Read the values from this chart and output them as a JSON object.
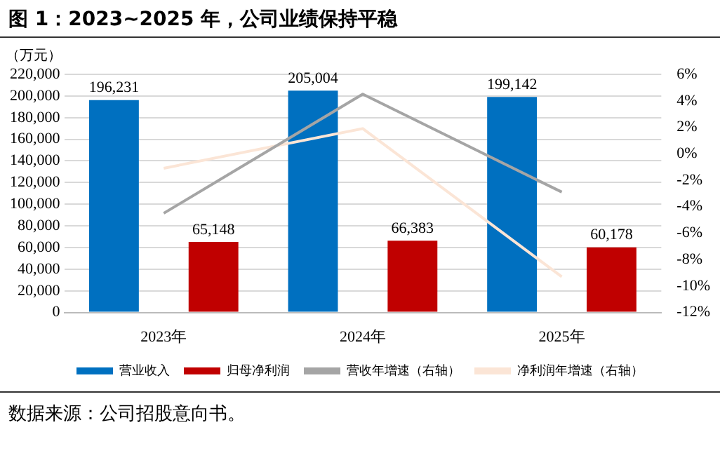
{
  "chart_data": {
    "type": "bar",
    "title": "图 1：2023~2025 年，公司业绩保持平稳",
    "ylabel": "（万元）",
    "categories": [
      "2023年",
      "2024年",
      "2025年"
    ],
    "series": [
      {
        "name": "营业收入",
        "color": "#0070c0",
        "values": [
          196231,
          205004,
          199142
        ],
        "value_labels": [
          "196,231",
          "205,004",
          "199,142"
        ]
      },
      {
        "name": "归母净利润",
        "color": "#c00000",
        "values": [
          65148,
          66383,
          60178
        ],
        "value_labels": [
          "65,148",
          "66,383",
          "60,178"
        ]
      },
      {
        "name": "营收年增速（右轴）",
        "type": "line",
        "axis": "y2",
        "color": "#a5a5a5",
        "values": [
          -4.5,
          4.5,
          -2.9
        ]
      },
      {
        "name": "净利润年增速（右轴）",
        "type": "line",
        "axis": "y2",
        "color": "#fbe5d6",
        "values": [
          -1.1,
          1.9,
          -9.3
        ]
      }
    ],
    "ylim": [
      0,
      220000
    ],
    "yticks": [
      0,
      {
        "value": 20000,
        "label": "20,000"
      },
      {
        "value": 40000,
        "label": "40,000"
      },
      {
        "value": 60000,
        "label": "60,000"
      },
      {
        "value": 80000,
        "label": "80,000"
      },
      {
        "value": 100000,
        "label": "100,000"
      },
      {
        "value": 120000,
        "label": "120,000"
      },
      {
        "value": 140000,
        "label": "140,000"
      },
      {
        "value": 160000,
        "label": "160,000"
      },
      {
        "value": 180000,
        "label": "180,000"
      },
      {
        "value": 200000,
        "label": "200,000"
      },
      {
        "value": 220000,
        "label": "220,000"
      }
    ],
    "y2lim": [
      -12,
      6
    ],
    "y2ticks": [
      {
        "value": -12,
        "label": "-12%"
      },
      {
        "value": -10,
        "label": "-10%"
      },
      {
        "value": -8,
        "label": "-8%"
      },
      {
        "value": -6,
        "label": "-6%"
      },
      {
        "value": -4,
        "label": "-4%"
      },
      {
        "value": -2,
        "label": "-2%"
      },
      {
        "value": 0,
        "label": "0%"
      },
      {
        "value": 2,
        "label": "2%"
      },
      {
        "value": 4,
        "label": "4%"
      },
      {
        "value": 6,
        "label": "6%"
      }
    ],
    "grid": "y",
    "legend": "bottom",
    "marker": "none",
    "annotations": [
      "数据来源：公司招股意向书。"
    ]
  }
}
